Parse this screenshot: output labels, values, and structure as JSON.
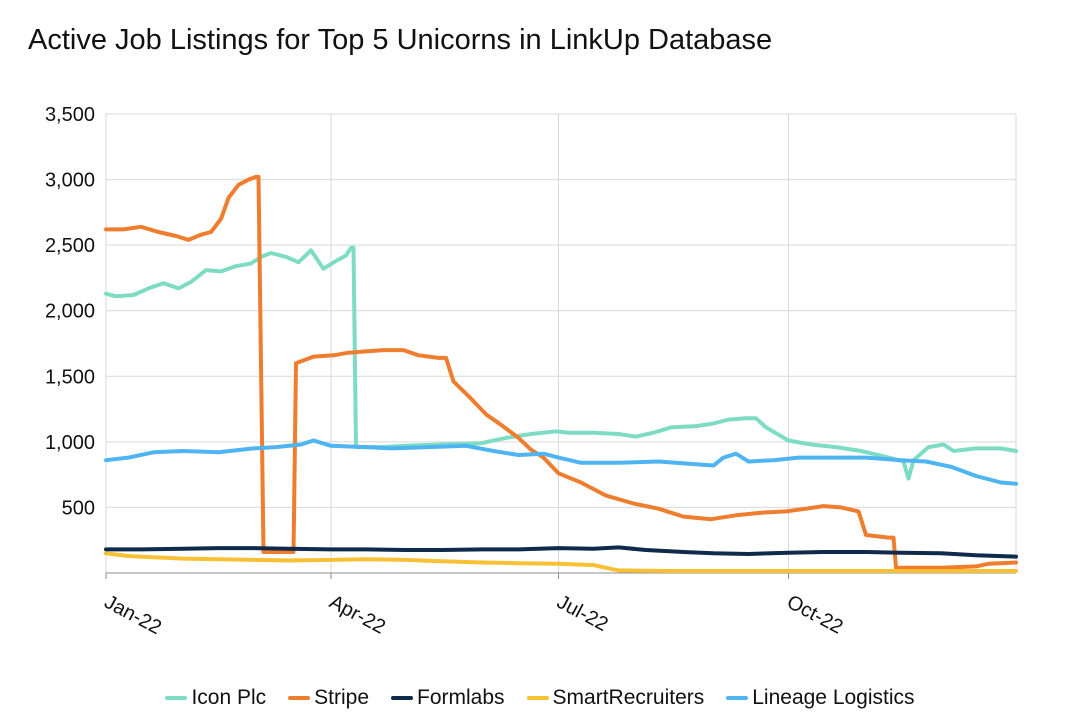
{
  "title": "Active Job Listings for Top 5 Unicorns in LinkUp Database",
  "chart_data": {
    "type": "line",
    "title": "Active Job Listings for Top 5 Unicorns in LinkUp Database",
    "xlabel": "",
    "ylabel": "",
    "xlim": [
      "2022-01-01",
      "2022-12-31"
    ],
    "ylim": [
      0,
      3500
    ],
    "y_ticks": [
      500,
      1000,
      1500,
      2000,
      2500,
      3000,
      3500
    ],
    "y_tick_labels": [
      "500",
      "1,000",
      "1,500",
      "2,000",
      "2,500",
      "3,000",
      "3,500"
    ],
    "x_ticks": [
      "2022-01-01",
      "2022-04-01",
      "2022-07-01",
      "2022-10-01"
    ],
    "x_tick_labels": [
      "Jan-22",
      "Apr-22",
      "Jul-22",
      "Oct-22"
    ],
    "grid": true,
    "legend_position": "bottom",
    "series": [
      {
        "name": "Icon Plc",
        "color": "#7fdcc4",
        "points": [
          [
            "2022-01-01",
            2130
          ],
          [
            "2022-01-05",
            2110
          ],
          [
            "2022-01-12",
            2120
          ],
          [
            "2022-01-18",
            2170
          ],
          [
            "2022-01-24",
            2210
          ],
          [
            "2022-01-30",
            2170
          ],
          [
            "2022-02-04",
            2220
          ],
          [
            "2022-02-10",
            2310
          ],
          [
            "2022-02-16",
            2300
          ],
          [
            "2022-02-22",
            2340
          ],
          [
            "2022-02-28",
            2360
          ],
          [
            "2022-03-04",
            2410
          ],
          [
            "2022-03-08",
            2440
          ],
          [
            "2022-03-14",
            2410
          ],
          [
            "2022-03-19",
            2370
          ],
          [
            "2022-03-24",
            2460
          ],
          [
            "2022-03-29",
            2320
          ],
          [
            "2022-04-03",
            2380
          ],
          [
            "2022-04-07",
            2420
          ],
          [
            "2022-04-09",
            2480
          ],
          [
            "2022-04-10",
            2480
          ],
          [
            "2022-04-11",
            960
          ],
          [
            "2022-04-20",
            960
          ],
          [
            "2022-05-01",
            970
          ],
          [
            "2022-05-15",
            980
          ],
          [
            "2022-05-31",
            990
          ],
          [
            "2022-06-10",
            1030
          ],
          [
            "2022-06-20",
            1060
          ],
          [
            "2022-06-30",
            1080
          ],
          [
            "2022-07-05",
            1070
          ],
          [
            "2022-07-15",
            1070
          ],
          [
            "2022-07-25",
            1060
          ],
          [
            "2022-08-01",
            1040
          ],
          [
            "2022-08-08",
            1070
          ],
          [
            "2022-08-15",
            1110
          ],
          [
            "2022-08-25",
            1120
          ],
          [
            "2022-09-01",
            1140
          ],
          [
            "2022-09-07",
            1170
          ],
          [
            "2022-09-14",
            1180
          ],
          [
            "2022-09-18",
            1180
          ],
          [
            "2022-09-22",
            1110
          ],
          [
            "2022-10-01",
            1010
          ],
          [
            "2022-10-10",
            980
          ],
          [
            "2022-10-20",
            960
          ],
          [
            "2022-10-30",
            930
          ],
          [
            "2022-11-08",
            890
          ],
          [
            "2022-11-16",
            850
          ],
          [
            "2022-11-18",
            720
          ],
          [
            "2022-11-20",
            860
          ],
          [
            "2022-11-26",
            960
          ],
          [
            "2022-12-02",
            980
          ],
          [
            "2022-12-06",
            930
          ],
          [
            "2022-12-15",
            950
          ],
          [
            "2022-12-25",
            950
          ],
          [
            "2022-12-31",
            930
          ]
        ]
      },
      {
        "name": "Stripe",
        "color": "#ef7d2e",
        "points": [
          [
            "2022-01-01",
            2620
          ],
          [
            "2022-01-08",
            2620
          ],
          [
            "2022-01-15",
            2640
          ],
          [
            "2022-01-22",
            2600
          ],
          [
            "2022-01-29",
            2570
          ],
          [
            "2022-02-03",
            2540
          ],
          [
            "2022-02-08",
            2580
          ],
          [
            "2022-02-12",
            2600
          ],
          [
            "2022-02-16",
            2700
          ],
          [
            "2022-02-19",
            2860
          ],
          [
            "2022-02-23",
            2960
          ],
          [
            "2022-02-27",
            3000
          ],
          [
            "2022-03-02",
            3020
          ],
          [
            "2022-03-03",
            3020
          ],
          [
            "2022-03-05",
            160
          ],
          [
            "2022-03-17",
            160
          ],
          [
            "2022-03-18",
            1600
          ],
          [
            "2022-03-25",
            1650
          ],
          [
            "2022-04-02",
            1660
          ],
          [
            "2022-04-08",
            1680
          ],
          [
            "2022-04-15",
            1690
          ],
          [
            "2022-04-22",
            1700
          ],
          [
            "2022-04-30",
            1700
          ],
          [
            "2022-05-06",
            1660
          ],
          [
            "2022-05-14",
            1640
          ],
          [
            "2022-05-17",
            1640
          ],
          [
            "2022-05-20",
            1460
          ],
          [
            "2022-05-27",
            1330
          ],
          [
            "2022-06-02",
            1210
          ],
          [
            "2022-06-08",
            1130
          ],
          [
            "2022-06-15",
            1030
          ],
          [
            "2022-06-20",
            940
          ],
          [
            "2022-06-25",
            880
          ],
          [
            "2022-07-01",
            760
          ],
          [
            "2022-07-10",
            690
          ],
          [
            "2022-07-20",
            590
          ],
          [
            "2022-07-31",
            530
          ],
          [
            "2022-08-10",
            490
          ],
          [
            "2022-08-20",
            430
          ],
          [
            "2022-08-31",
            410
          ],
          [
            "2022-09-10",
            440
          ],
          [
            "2022-09-20",
            460
          ],
          [
            "2022-09-30",
            470
          ],
          [
            "2022-10-08",
            490
          ],
          [
            "2022-10-15",
            510
          ],
          [
            "2022-10-22",
            500
          ],
          [
            "2022-10-29",
            470
          ],
          [
            "2022-11-01",
            290
          ],
          [
            "2022-11-10",
            270
          ],
          [
            "2022-11-12",
            270
          ],
          [
            "2022-11-13",
            40
          ],
          [
            "2022-12-01",
            40
          ],
          [
            "2022-12-15",
            50
          ],
          [
            "2022-12-20",
            70
          ],
          [
            "2022-12-31",
            80
          ]
        ]
      },
      {
        "name": "Formlabs",
        "color": "#0f2a4a",
        "points": [
          [
            "2022-01-01",
            180
          ],
          [
            "2022-01-15",
            180
          ],
          [
            "2022-02-01",
            185
          ],
          [
            "2022-02-15",
            190
          ],
          [
            "2022-03-01",
            190
          ],
          [
            "2022-03-15",
            185
          ],
          [
            "2022-04-01",
            180
          ],
          [
            "2022-04-15",
            180
          ],
          [
            "2022-05-01",
            175
          ],
          [
            "2022-05-15",
            175
          ],
          [
            "2022-06-01",
            180
          ],
          [
            "2022-06-15",
            180
          ],
          [
            "2022-07-01",
            190
          ],
          [
            "2022-07-15",
            185
          ],
          [
            "2022-07-25",
            195
          ],
          [
            "2022-08-05",
            175
          ],
          [
            "2022-08-20",
            160
          ],
          [
            "2022-09-01",
            150
          ],
          [
            "2022-09-15",
            145
          ],
          [
            "2022-10-01",
            155
          ],
          [
            "2022-10-15",
            160
          ],
          [
            "2022-11-01",
            160
          ],
          [
            "2022-11-15",
            155
          ],
          [
            "2022-12-01",
            150
          ],
          [
            "2022-12-15",
            135
          ],
          [
            "2022-12-31",
            125
          ]
        ]
      },
      {
        "name": "SmartRecruiters",
        "color": "#f8c035",
        "points": [
          [
            "2022-01-01",
            150
          ],
          [
            "2022-01-10",
            130
          ],
          [
            "2022-01-20",
            120
          ],
          [
            "2022-02-01",
            110
          ],
          [
            "2022-02-15",
            105
          ],
          [
            "2022-03-01",
            100
          ],
          [
            "2022-03-15",
            95
          ],
          [
            "2022-04-01",
            100
          ],
          [
            "2022-04-15",
            105
          ],
          [
            "2022-05-01",
            100
          ],
          [
            "2022-05-15",
            90
          ],
          [
            "2022-06-01",
            80
          ],
          [
            "2022-06-15",
            75
          ],
          [
            "2022-07-01",
            70
          ],
          [
            "2022-07-15",
            60
          ],
          [
            "2022-07-25",
            20
          ],
          [
            "2022-08-15",
            15
          ],
          [
            "2022-09-15",
            15
          ],
          [
            "2022-10-15",
            15
          ],
          [
            "2022-11-15",
            15
          ],
          [
            "2022-12-15",
            15
          ],
          [
            "2022-12-31",
            15
          ]
        ]
      },
      {
        "name": "Lineage Logistics",
        "color": "#4fb4f2",
        "points": [
          [
            "2022-01-01",
            860
          ],
          [
            "2022-01-10",
            880
          ],
          [
            "2022-01-20",
            920
          ],
          [
            "2022-02-01",
            930
          ],
          [
            "2022-02-15",
            920
          ],
          [
            "2022-03-01",
            950
          ],
          [
            "2022-03-10",
            960
          ],
          [
            "2022-03-20",
            980
          ],
          [
            "2022-03-25",
            1010
          ],
          [
            "2022-04-01",
            970
          ],
          [
            "2022-04-15",
            960
          ],
          [
            "2022-04-25",
            950
          ],
          [
            "2022-05-10",
            960
          ],
          [
            "2022-05-25",
            970
          ],
          [
            "2022-06-05",
            930
          ],
          [
            "2022-06-15",
            900
          ],
          [
            "2022-06-25",
            910
          ],
          [
            "2022-07-01",
            880
          ],
          [
            "2022-07-10",
            840
          ],
          [
            "2022-07-25",
            840
          ],
          [
            "2022-08-10",
            850
          ],
          [
            "2022-08-25",
            830
          ],
          [
            "2022-09-01",
            820
          ],
          [
            "2022-09-05",
            880
          ],
          [
            "2022-09-10",
            910
          ],
          [
            "2022-09-15",
            850
          ],
          [
            "2022-09-25",
            860
          ],
          [
            "2022-10-05",
            880
          ],
          [
            "2022-10-20",
            880
          ],
          [
            "2022-11-01",
            880
          ],
          [
            "2022-11-15",
            860
          ],
          [
            "2022-11-25",
            850
          ],
          [
            "2022-12-05",
            810
          ],
          [
            "2022-12-15",
            740
          ],
          [
            "2022-12-25",
            690
          ],
          [
            "2022-12-31",
            680
          ]
        ]
      }
    ]
  }
}
